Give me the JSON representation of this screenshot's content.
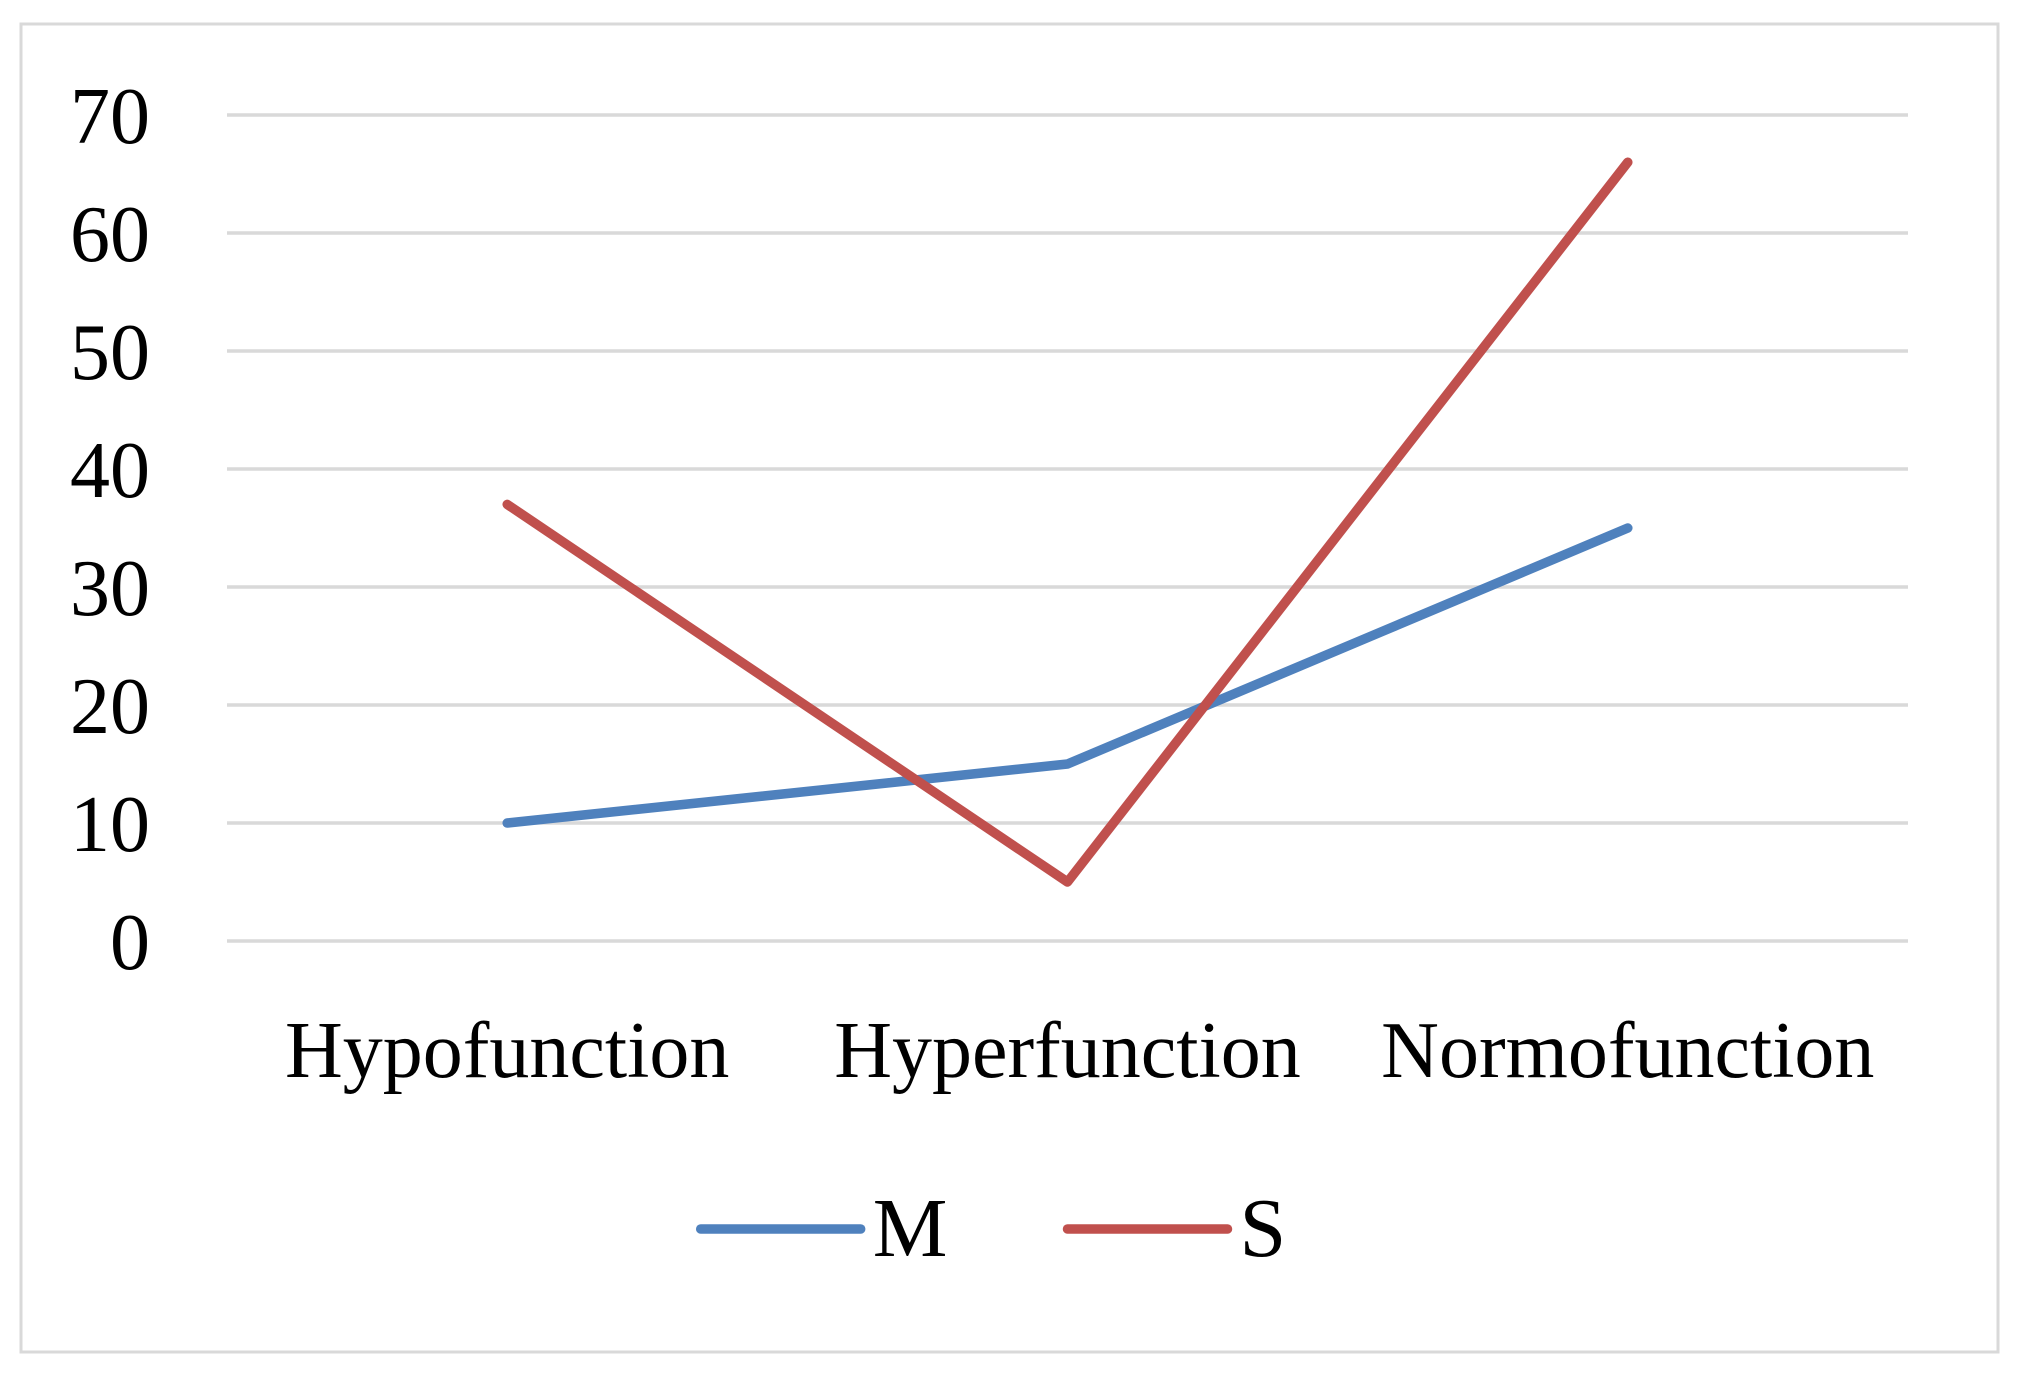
{
  "figure": {
    "background": "#FFFFFF",
    "border_color": "#D9D9D9"
  },
  "chart_data": {
    "type": "line",
    "title": "",
    "xlabel": "",
    "ylabel": "",
    "categories": [
      "Hypofunction",
      "Hyperfunction",
      "Normofunction"
    ],
    "series": [
      {
        "name": "M",
        "values": [
          10,
          15,
          35
        ],
        "color": "#4F81BD"
      },
      {
        "name": "S",
        "values": [
          37,
          5,
          66
        ],
        "color": "#C0504D"
      }
    ],
    "ylim": [
      0,
      70
    ],
    "yticks": [
      0,
      10,
      20,
      30,
      40,
      50,
      60,
      70
    ],
    "grid": true,
    "gridline_color": "#D9D9D9",
    "tick_label_color": "#000000",
    "legend_position": "bottom",
    "legend_labels": [
      "M",
      "S"
    ]
  }
}
